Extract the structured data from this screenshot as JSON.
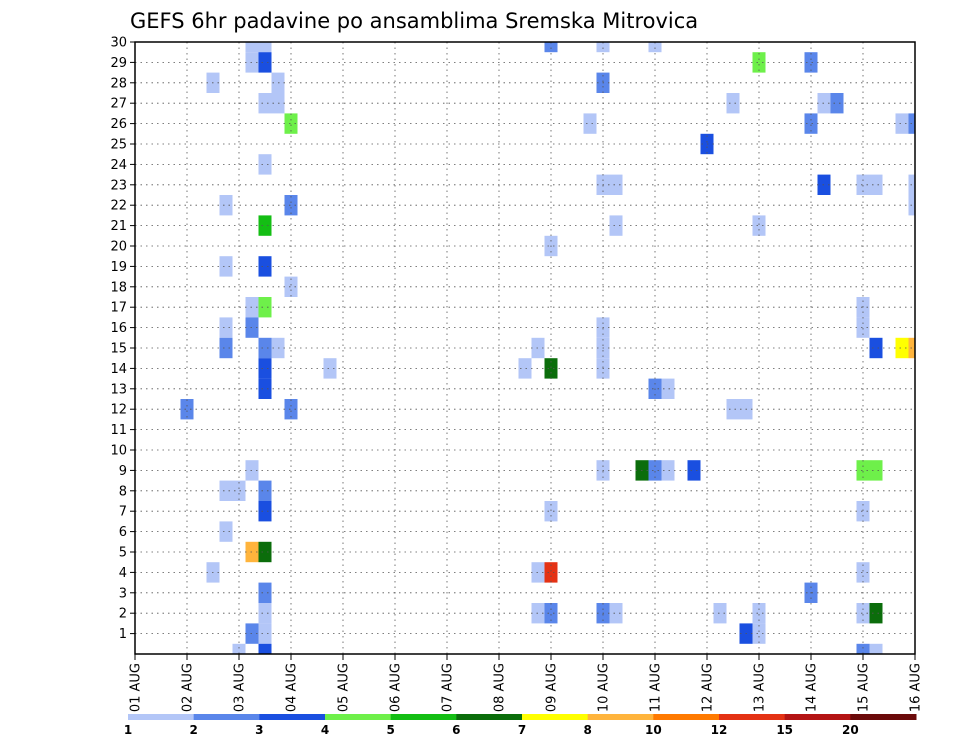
{
  "chart_data": {
    "type": "heatmap",
    "title": "GEFS 6hr padavine po ansamblima Sremska Mitrovica",
    "xlabel": "",
    "ylabel": "",
    "x_ticks": [
      "01 AUG",
      "02 AUG",
      "03 AUG",
      "04 AUG",
      "05 AUG",
      "06 AUG",
      "07 AUG",
      "08 AUG",
      "09 AUG",
      "10 AUG",
      "11 AUG",
      "12 AUG",
      "13 AUG",
      "14 AUG",
      "15 AUG",
      "16 AUG"
    ],
    "y_ticks": [
      1,
      2,
      3,
      4,
      5,
      6,
      7,
      8,
      9,
      10,
      11,
      12,
      13,
      14,
      15,
      16,
      17,
      18,
      19,
      20,
      21,
      22,
      23,
      24,
      25,
      26,
      27,
      28,
      29,
      30
    ],
    "xlim_days": [
      0,
      15
    ],
    "ylim": [
      0,
      30
    ],
    "grid": true,
    "steps_per_day": 4,
    "colorbar": {
      "levels": [
        1,
        2,
        3,
        4,
        5,
        6,
        7,
        8,
        10,
        12,
        15,
        20
      ],
      "colors": [
        "#b3c6f7",
        "#5a86ea",
        "#1a4fe0",
        "#6ef04a",
        "#14be14",
        "#0b6d0b",
        "#ffff00",
        "#ffb43c",
        "#ff7a00",
        "#e43214",
        "#b41414",
        "#6b0a0a"
      ]
    },
    "cells": [
      {
        "t": 9,
        "m": 30,
        "c": 0
      },
      {
        "t": 10,
        "m": 30,
        "c": 0
      },
      {
        "t": 32,
        "m": 30,
        "c": 1
      },
      {
        "t": 36,
        "m": 30,
        "c": 0
      },
      {
        "t": 40,
        "m": 30,
        "c": 0
      },
      {
        "t": 9,
        "m": 29,
        "c": 0
      },
      {
        "t": 10,
        "m": 29,
        "c": 2
      },
      {
        "t": 48,
        "m": 29,
        "c": 3
      },
      {
        "t": 52,
        "m": 29,
        "c": 1
      },
      {
        "t": 6,
        "m": 28,
        "c": 0
      },
      {
        "t": 11,
        "m": 28,
        "c": 0
      },
      {
        "t": 36,
        "m": 28,
        "c": 1
      },
      {
        "t": 10,
        "m": 27,
        "c": 0
      },
      {
        "t": 11,
        "m": 27,
        "c": 0
      },
      {
        "t": 46,
        "m": 27,
        "c": 0
      },
      {
        "t": 53,
        "m": 27,
        "c": 0
      },
      {
        "t": 54,
        "m": 27,
        "c": 1
      },
      {
        "t": 12,
        "m": 26,
        "c": 3
      },
      {
        "t": 35,
        "m": 26,
        "c": 0
      },
      {
        "t": 52,
        "m": 26,
        "c": 1
      },
      {
        "t": 59,
        "m": 26,
        "c": 0
      },
      {
        "t": 60,
        "m": 26,
        "c": 1
      },
      {
        "t": 44,
        "m": 25,
        "c": 2
      },
      {
        "t": 10,
        "m": 24,
        "c": 0
      },
      {
        "t": 36,
        "m": 23,
        "c": 0
      },
      {
        "t": 37,
        "m": 23,
        "c": 0
      },
      {
        "t": 53,
        "m": 23,
        "c": 2
      },
      {
        "t": 56,
        "m": 23,
        "c": 0
      },
      {
        "t": 57,
        "m": 23,
        "c": 0
      },
      {
        "t": 60,
        "m": 23,
        "c": 0
      },
      {
        "t": 7,
        "m": 22,
        "c": 0
      },
      {
        "t": 12,
        "m": 22,
        "c": 1
      },
      {
        "t": 60,
        "m": 22,
        "c": 0
      },
      {
        "t": 10,
        "m": 21,
        "c": 4
      },
      {
        "t": 37,
        "m": 21,
        "c": 0
      },
      {
        "t": 48,
        "m": 21,
        "c": 0
      },
      {
        "t": 32,
        "m": 20,
        "c": 0
      },
      {
        "t": 7,
        "m": 19,
        "c": 0
      },
      {
        "t": 10,
        "m": 19,
        "c": 2
      },
      {
        "t": 12,
        "m": 18,
        "c": 0
      },
      {
        "t": 9,
        "m": 17,
        "c": 0
      },
      {
        "t": 10,
        "m": 17,
        "c": 3
      },
      {
        "t": 56,
        "m": 17,
        "c": 0
      },
      {
        "t": 7,
        "m": 16,
        "c": 0
      },
      {
        "t": 9,
        "m": 16,
        "c": 1
      },
      {
        "t": 36,
        "m": 16,
        "c": 0
      },
      {
        "t": 56,
        "m": 16,
        "c": 0
      },
      {
        "t": 7,
        "m": 15,
        "c": 1
      },
      {
        "t": 10,
        "m": 15,
        "c": 1
      },
      {
        "t": 11,
        "m": 15,
        "c": 0
      },
      {
        "t": 31,
        "m": 15,
        "c": 0
      },
      {
        "t": 36,
        "m": 15,
        "c": 0
      },
      {
        "t": 57,
        "m": 15,
        "c": 2
      },
      {
        "t": 59,
        "m": 15,
        "c": 6
      },
      {
        "t": 60,
        "m": 15,
        "c": 7
      },
      {
        "t": 10,
        "m": 14,
        "c": 2
      },
      {
        "t": 15,
        "m": 14,
        "c": 0
      },
      {
        "t": 30,
        "m": 14,
        "c": 0
      },
      {
        "t": 32,
        "m": 14,
        "c": 5
      },
      {
        "t": 36,
        "m": 14,
        "c": 0
      },
      {
        "t": 10,
        "m": 13,
        "c": 2
      },
      {
        "t": 40,
        "m": 13,
        "c": 1
      },
      {
        "t": 41,
        "m": 13,
        "c": 0
      },
      {
        "t": 4,
        "m": 12,
        "c": 1
      },
      {
        "t": 12,
        "m": 12,
        "c": 1
      },
      {
        "t": 46,
        "m": 12,
        "c": 0
      },
      {
        "t": 47,
        "m": 12,
        "c": 0
      },
      {
        "t": 9,
        "m": 9,
        "c": 0
      },
      {
        "t": 36,
        "m": 9,
        "c": 0
      },
      {
        "t": 39,
        "m": 9,
        "c": 5
      },
      {
        "t": 40,
        "m": 9,
        "c": 1
      },
      {
        "t": 41,
        "m": 9,
        "c": 0
      },
      {
        "t": 43,
        "m": 9,
        "c": 2
      },
      {
        "t": 56,
        "m": 9,
        "c": 3
      },
      {
        "t": 57,
        "m": 9,
        "c": 3
      },
      {
        "t": 7,
        "m": 8,
        "c": 0
      },
      {
        "t": 8,
        "m": 8,
        "c": 0
      },
      {
        "t": 10,
        "m": 8,
        "c": 1
      },
      {
        "t": 10,
        "m": 7,
        "c": 2
      },
      {
        "t": 32,
        "m": 7,
        "c": 0
      },
      {
        "t": 56,
        "m": 7,
        "c": 0
      },
      {
        "t": 7,
        "m": 6,
        "c": 0
      },
      {
        "t": 9,
        "m": 5,
        "c": 7
      },
      {
        "t": 10,
        "m": 5,
        "c": 5
      },
      {
        "t": 6,
        "m": 4,
        "c": 0
      },
      {
        "t": 31,
        "m": 4,
        "c": 0
      },
      {
        "t": 32,
        "m": 4,
        "c": 9
      },
      {
        "t": 56,
        "m": 4,
        "c": 0
      },
      {
        "t": 10,
        "m": 3,
        "c": 1
      },
      {
        "t": 52,
        "m": 3,
        "c": 1
      },
      {
        "t": 10,
        "m": 2,
        "c": 0
      },
      {
        "t": 31,
        "m": 2,
        "c": 0
      },
      {
        "t": 32,
        "m": 2,
        "c": 1
      },
      {
        "t": 36,
        "m": 2,
        "c": 1
      },
      {
        "t": 37,
        "m": 2,
        "c": 0
      },
      {
        "t": 45,
        "m": 2,
        "c": 0
      },
      {
        "t": 48,
        "m": 2,
        "c": 0
      },
      {
        "t": 56,
        "m": 2,
        "c": 0
      },
      {
        "t": 57,
        "m": 2,
        "c": 5
      },
      {
        "t": 9,
        "m": 1,
        "c": 1
      },
      {
        "t": 10,
        "m": 1,
        "c": 0
      },
      {
        "t": 47,
        "m": 1,
        "c": 2
      },
      {
        "t": 48,
        "m": 1,
        "c": 0
      },
      {
        "t": 8,
        "m": 0,
        "c": 0
      },
      {
        "t": 10,
        "m": 0,
        "c": 2
      },
      {
        "t": 56,
        "m": 0,
        "c": 1
      },
      {
        "t": 57,
        "m": 0,
        "c": 0
      }
    ]
  }
}
